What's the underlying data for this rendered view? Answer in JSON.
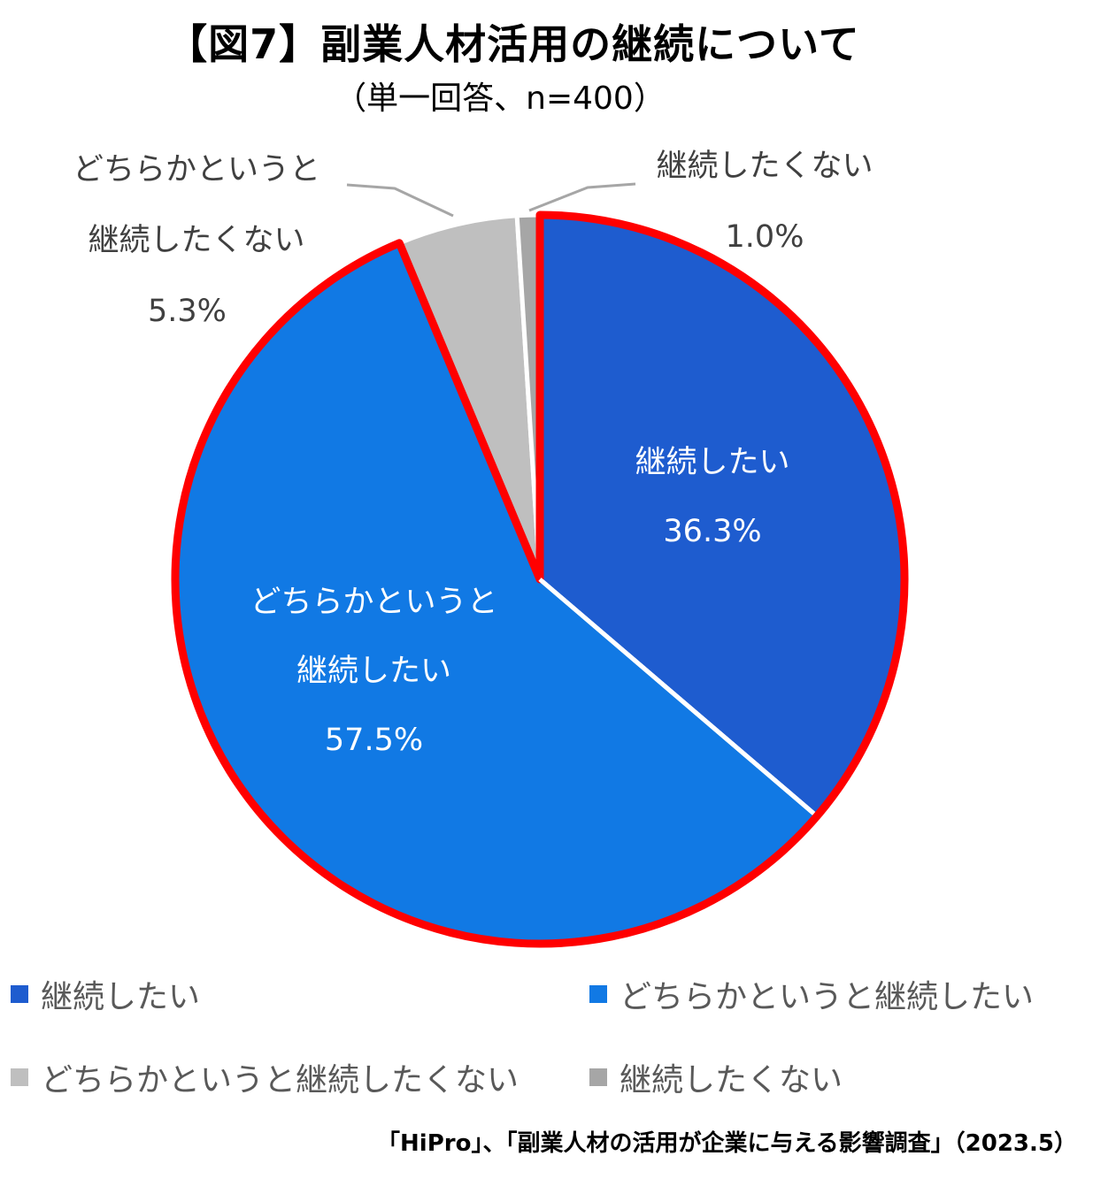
{
  "title": "【図7】副業人材活用の継続について",
  "subtitle": "（単一回答、n=400）",
  "source": "「HiPro」、「副業人材の活用が企業に与える影響調査」（2023.5）",
  "chart_data": {
    "type": "pie",
    "highlight_color": "#ff0000",
    "slices": [
      {
        "label": "継続したい",
        "value": 36.3,
        "value_label": "36.3%",
        "color": "#1e5ccf",
        "label_lines": [
          "継続したい",
          "36.3%"
        ]
      },
      {
        "label": "どちらかというと継続したい",
        "value": 57.5,
        "value_label": "57.5%",
        "color": "#1179e4",
        "label_lines": [
          "どちらかというと",
          "継続したい",
          "57.5%"
        ]
      },
      {
        "label": "どちらかというと継続したくない",
        "value": 5.3,
        "value_label": "5.3%",
        "color": "#bfbfbf",
        "label_lines": [
          "どちらかというと",
          "継続したくない",
          "5.3%"
        ]
      },
      {
        "label": "継続したくない",
        "value": 1.0,
        "value_label": "1.0%",
        "color": "#a6a6a6",
        "label_lines": [
          "継続したくない",
          "1.0%"
        ]
      }
    ],
    "legend": {
      "placement": "bottom",
      "items": [
        "継続したい",
        "どちらかというと継続したい",
        "どちらかというと継続したくない",
        "継続したくない"
      ]
    }
  }
}
